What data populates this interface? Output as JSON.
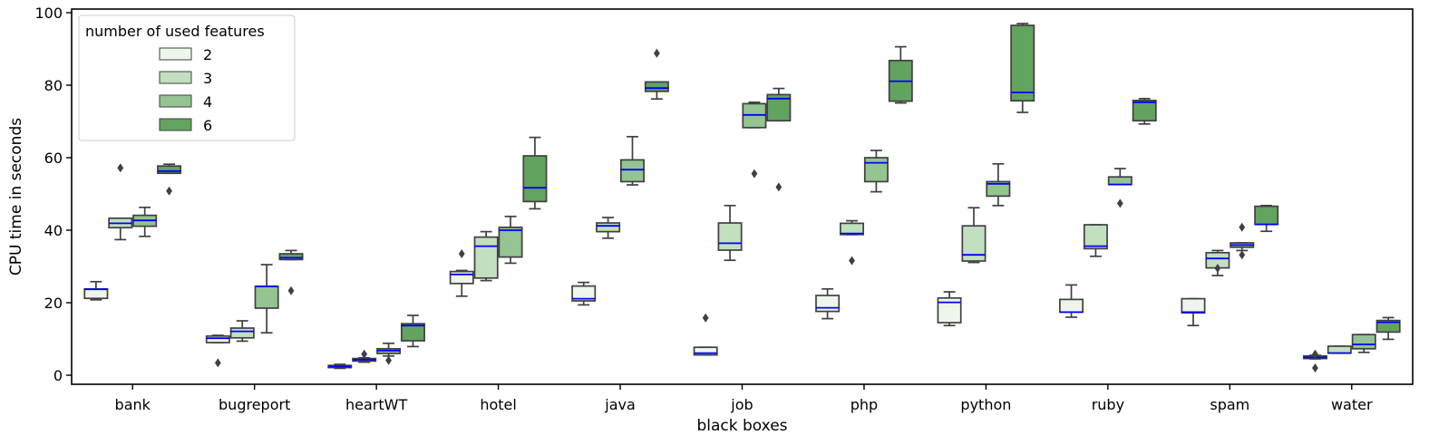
{
  "chart_data": {
    "type": "box",
    "xlabel": "black boxes",
    "ylabel": "CPU time in seconds",
    "ylim": [
      -2.5,
      101
    ],
    "yticks": [
      0,
      20,
      40,
      60,
      80,
      100
    ],
    "categories": [
      "bank",
      "bugreport",
      "heartWT",
      "hotel",
      "java",
      "job",
      "php",
      "python",
      "ruby",
      "spam",
      "water"
    ],
    "legend": {
      "title": "number of used features",
      "placement": "upper-left",
      "entries": [
        "2",
        "3",
        "4",
        "6"
      ]
    },
    "series": [
      {
        "name": "2",
        "color": "#eef5ec",
        "boxes": [
          {
            "q1": 21.2,
            "median": 23.7,
            "q3": 23.8,
            "wlo": 20.8,
            "whi": 25.8,
            "outliers": []
          },
          {
            "q1": 9.0,
            "median": 10.2,
            "q3": 10.8,
            "wlo": 9.0,
            "whi": 11.0,
            "outliers": [
              3.4
            ]
          },
          {
            "q1": 2.1,
            "median": 2.4,
            "q3": 2.7,
            "wlo": 1.9,
            "whi": 3.0,
            "outliers": []
          },
          {
            "q1": 25.3,
            "median": 27.8,
            "q3": 28.6,
            "wlo": 21.8,
            "whi": 28.9,
            "outliers": [
              33.5
            ]
          },
          {
            "q1": 20.5,
            "median": 21.1,
            "q3": 24.6,
            "wlo": 19.4,
            "whi": 25.6,
            "outliers": []
          },
          {
            "q1": 5.6,
            "median": 6.1,
            "q3": 7.7,
            "wlo": 5.6,
            "whi": 7.7,
            "outliers": [
              15.8
            ]
          },
          {
            "q1": 17.6,
            "median": 18.6,
            "q3": 22.0,
            "wlo": 15.6,
            "whi": 23.8,
            "outliers": []
          },
          {
            "q1": 14.5,
            "median": 20.1,
            "q3": 21.3,
            "wlo": 13.7,
            "whi": 23.0,
            "outliers": []
          },
          {
            "q1": 17.4,
            "median": 17.4,
            "q3": 20.9,
            "wlo": 16.0,
            "whi": 24.9,
            "outliers": []
          },
          {
            "q1": 17.2,
            "median": 17.4,
            "q3": 21.1,
            "wlo": 13.7,
            "whi": 21.1,
            "outliers": []
          },
          {
            "q1": 4.6,
            "median": 4.9,
            "q3": 5.3,
            "wlo": 4.5,
            "whi": 5.5,
            "outliers": [
              5.8,
              2.0
            ]
          }
        ]
      },
      {
        "name": "3",
        "color": "#c2dfc0",
        "boxes": [
          {
            "q1": 40.7,
            "median": 41.9,
            "q3": 43.3,
            "wlo": 37.4,
            "whi": 43.3,
            "outliers": [
              57.2
            ]
          },
          {
            "q1": 10.3,
            "median": 12.1,
            "q3": 13.0,
            "wlo": 9.4,
            "whi": 15.0,
            "outliers": []
          },
          {
            "q1": 3.9,
            "median": 4.3,
            "q3": 4.6,
            "wlo": 3.6,
            "whi": 4.8,
            "outliers": [
              5.8
            ]
          },
          {
            "q1": 26.8,
            "median": 35.6,
            "q3": 38.1,
            "wlo": 26.1,
            "whi": 39.6,
            "outliers": []
          },
          {
            "q1": 39.6,
            "median": 41.2,
            "q3": 42.0,
            "wlo": 37.8,
            "whi": 43.5,
            "outliers": []
          },
          {
            "q1": 34.5,
            "median": 36.4,
            "q3": 42.0,
            "wlo": 31.7,
            "whi": 46.8,
            "outliers": []
          },
          {
            "q1": 38.8,
            "median": 39.1,
            "q3": 41.9,
            "wlo": 38.8,
            "whi": 42.6,
            "outliers": [
              31.6
            ]
          },
          {
            "q1": 31.5,
            "median": 33.2,
            "q3": 41.2,
            "wlo": 31.1,
            "whi": 46.2,
            "outliers": []
          },
          {
            "q1": 34.9,
            "median": 35.6,
            "q3": 41.5,
            "wlo": 32.8,
            "whi": 41.5,
            "outliers": []
          },
          {
            "q1": 29.6,
            "median": 32.2,
            "q3": 33.8,
            "wlo": 27.5,
            "whi": 34.4,
            "outliers": [
              29.5
            ]
          },
          {
            "q1": 6.1,
            "median": 6.1,
            "q3": 8.0,
            "wlo": 6.1,
            "whi": 8.0,
            "outliers": []
          }
        ]
      },
      {
        "name": "4",
        "color": "#94c491",
        "boxes": [
          {
            "q1": 41.1,
            "median": 42.7,
            "q3": 44.1,
            "wlo": 38.3,
            "whi": 46.3,
            "outliers": []
          },
          {
            "q1": 18.5,
            "median": 24.5,
            "q3": 24.5,
            "wlo": 11.7,
            "whi": 30.5,
            "outliers": []
          },
          {
            "q1": 6.0,
            "median": 6.8,
            "q3": 7.3,
            "wlo": 5.3,
            "whi": 8.8,
            "outliers": [
              4.1
            ]
          },
          {
            "q1": 32.6,
            "median": 40.0,
            "q3": 40.8,
            "wlo": 30.9,
            "whi": 43.8,
            "outliers": []
          },
          {
            "q1": 53.4,
            "median": 56.7,
            "q3": 59.4,
            "wlo": 52.5,
            "whi": 65.8,
            "outliers": []
          },
          {
            "q1": 68.3,
            "median": 71.8,
            "q3": 74.9,
            "wlo": 68.3,
            "whi": 75.3,
            "outliers": [
              55.6
            ]
          },
          {
            "q1": 53.4,
            "median": 58.6,
            "q3": 60.0,
            "wlo": 50.6,
            "whi": 62.0,
            "outliers": []
          },
          {
            "q1": 49.4,
            "median": 52.8,
            "q3": 53.4,
            "wlo": 46.8,
            "whi": 58.3,
            "outliers": []
          },
          {
            "q1": 52.6,
            "median": 52.6,
            "q3": 54.7,
            "wlo": 52.6,
            "whi": 57.0,
            "outliers": [
              47.4
            ]
          },
          {
            "q1": 35.3,
            "median": 35.9,
            "q3": 36.5,
            "wlo": 34.4,
            "whi": 36.5,
            "outliers": [
              40.8,
              33.2
            ]
          },
          {
            "q1": 7.3,
            "median": 8.5,
            "q3": 11.2,
            "wlo": 6.3,
            "whi": 11.2,
            "outliers": []
          }
        ]
      },
      {
        "name": "6",
        "color": "#63a360",
        "boxes": [
          {
            "q1": 55.7,
            "median": 56.3,
            "q3": 57.7,
            "wlo": 55.7,
            "whi": 58.2,
            "outliers": [
              50.8
            ]
          },
          {
            "q1": 31.9,
            "median": 32.4,
            "q3": 33.5,
            "wlo": 31.9,
            "whi": 34.4,
            "outliers": [
              23.3
            ]
          },
          {
            "q1": 9.5,
            "median": 13.7,
            "q3": 14.2,
            "wlo": 7.9,
            "whi": 16.5,
            "outliers": []
          },
          {
            "q1": 47.9,
            "median": 51.7,
            "q3": 60.5,
            "wlo": 45.9,
            "whi": 65.6,
            "outliers": []
          },
          {
            "q1": 78.3,
            "median": 79.2,
            "q3": 80.9,
            "wlo": 76.2,
            "whi": 80.9,
            "outliers": [
              88.8
            ]
          },
          {
            "q1": 70.2,
            "median": 76.3,
            "q3": 77.4,
            "wlo": 70.2,
            "whi": 79.1,
            "outliers": [
              51.9
            ]
          },
          {
            "q1": 75.6,
            "median": 81.1,
            "q3": 86.8,
            "wlo": 75.1,
            "whi": 90.6,
            "outliers": []
          },
          {
            "q1": 75.7,
            "median": 78.0,
            "q3": 96.5,
            "wlo": 72.5,
            "whi": 97.0,
            "outliers": []
          },
          {
            "q1": 70.2,
            "median": 75.3,
            "q3": 75.8,
            "wlo": 69.3,
            "whi": 76.3,
            "outliers": []
          },
          {
            "q1": 41.6,
            "median": 41.6,
            "q3": 46.6,
            "wlo": 39.7,
            "whi": 46.8,
            "outliers": []
          },
          {
            "q1": 11.9,
            "median": 14.6,
            "q3": 15.1,
            "wlo": 9.9,
            "whi": 15.9,
            "outliers": []
          }
        ]
      }
    ],
    "median_color": "#0000ff",
    "line_color": "#404040"
  }
}
